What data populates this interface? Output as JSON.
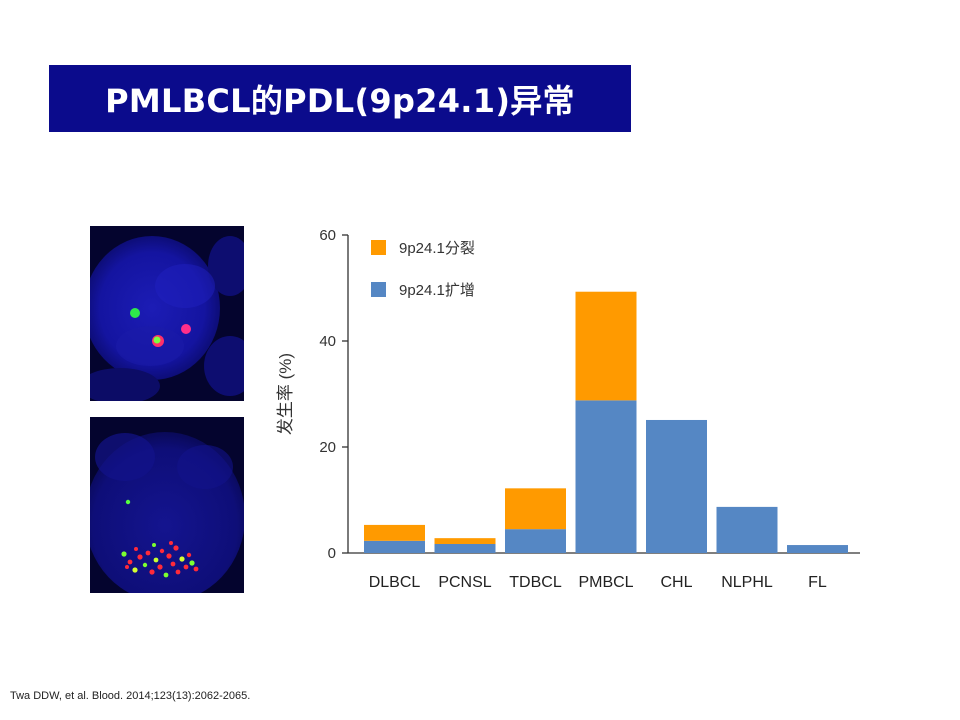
{
  "slide": {
    "title": "PMLBCL的PDL(9p24.1)异常",
    "citation": "Twa DDW, et al. Blood. 2014;123(13):2062-2065."
  },
  "colors": {
    "title_bar": "#0b0b8c",
    "title_text": "#ffffff",
    "split": "#ff9a00",
    "amplification": "#5587c4",
    "micro_background": "#04042e"
  },
  "images": {
    "top": "fish-nucleus-split-signals",
    "bottom": "fish-nucleus-amplification-signals"
  },
  "chart_data": {
    "type": "bar",
    "stacked": true,
    "categories": [
      "DLBCL",
      "PCNSL",
      "TDBCL",
      "PMBCL",
      "CHL",
      "NLPHL",
      "FL"
    ],
    "series": [
      {
        "name": "9p24.1扩增",
        "color": "#5587c4",
        "values": [
          2.3,
          1.7,
          4.5,
          28.8,
          25.1,
          8.7,
          1.5
        ]
      },
      {
        "name": "9p24.1分裂",
        "color": "#ff9a00",
        "values": [
          3.0,
          1.1,
          7.7,
          20.5,
          0,
          0,
          0
        ]
      }
    ],
    "legend_order": [
      "9p24.1分裂",
      "9p24.1扩增"
    ],
    "ylabel": "发生率 (%)",
    "xlabel": "",
    "ylim": [
      0,
      60
    ],
    "yticks": [
      0,
      20,
      40,
      60
    ],
    "legend_position": "top-left",
    "grid": false
  }
}
